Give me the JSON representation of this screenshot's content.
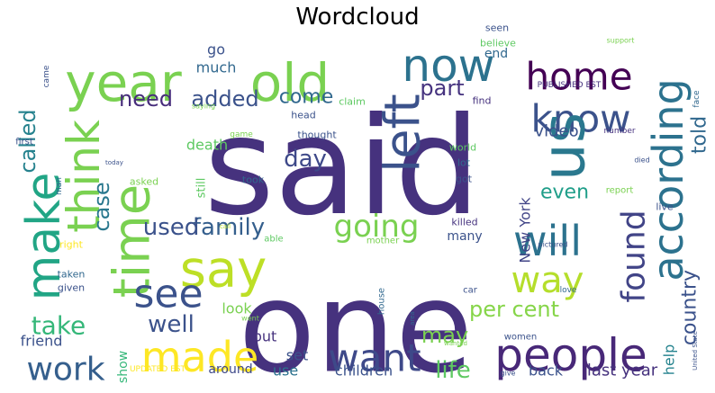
{
  "chart_data": {
    "type": "wordcloud",
    "title": "Wordcloud",
    "palette": [
      "#440154",
      "#472f7d",
      "#3b518b",
      "#2c718e",
      "#21908d",
      "#27ad81",
      "#5cc863",
      "#aadc32",
      "#fde725"
    ],
    "words": [
      {
        "text": "said",
        "color": "#46327e"
      },
      {
        "text": "one",
        "color": "#46327e"
      },
      {
        "text": "year",
        "color": "#7ad151"
      },
      {
        "text": "old",
        "color": "#7ad151"
      },
      {
        "text": "now",
        "color": "#2c728e"
      },
      {
        "text": "home",
        "color": "#440154"
      },
      {
        "text": "know",
        "color": "#3b528b"
      },
      {
        "text": "according",
        "color": "#2c728e"
      },
      {
        "text": "us",
        "color": "#2a788e"
      },
      {
        "text": "left",
        "color": "#3b528b"
      },
      {
        "text": "will",
        "color": "#2c728e"
      },
      {
        "text": "time",
        "color": "#7ad151"
      },
      {
        "text": "think",
        "color": "#7ad151"
      },
      {
        "text": "make",
        "color": "#21a585"
      },
      {
        "text": "say",
        "color": "#bddf26"
      },
      {
        "text": "see",
        "color": "#3b528b"
      },
      {
        "text": "made",
        "color": "#fde725"
      },
      {
        "text": "people",
        "color": "#482878"
      },
      {
        "text": "want",
        "color": "#3e4989"
      },
      {
        "text": "going",
        "color": "#7ad151"
      },
      {
        "text": "found",
        "color": "#414487"
      },
      {
        "text": "way",
        "color": "#b5de2b"
      },
      {
        "text": "family",
        "color": "#355f8d"
      },
      {
        "text": "used",
        "color": "#3b528b"
      },
      {
        "text": "work",
        "color": "#355f8d"
      },
      {
        "text": "take",
        "color": "#35b779"
      },
      {
        "text": "well",
        "color": "#3b528b"
      },
      {
        "text": "per cent",
        "color": "#86d549"
      },
      {
        "text": "may",
        "color": "#7ad151"
      },
      {
        "text": "life",
        "color": "#5ec962"
      },
      {
        "text": "country",
        "color": "#3b528b"
      },
      {
        "text": "told",
        "color": "#31688e"
      },
      {
        "text": "even",
        "color": "#1f9e89"
      },
      {
        "text": "case",
        "color": "#2a788e"
      },
      {
        "text": "called",
        "color": "#26828e"
      },
      {
        "text": "need",
        "color": "#472d7b"
      },
      {
        "text": "added",
        "color": "#3b528b"
      },
      {
        "text": "come",
        "color": "#31688e"
      },
      {
        "text": "part",
        "color": "#46337f"
      },
      {
        "text": "day",
        "color": "#3e4989"
      },
      {
        "text": "video",
        "color": "#3b528b"
      },
      {
        "text": "death",
        "color": "#5ec962"
      },
      {
        "text": "go",
        "color": "#3b528b"
      },
      {
        "text": "much",
        "color": "#31688e"
      },
      {
        "text": "New York",
        "color": "#414487"
      },
      {
        "text": "children",
        "color": "#3b528b"
      },
      {
        "text": "back",
        "color": "#3b528b"
      },
      {
        "text": "last year",
        "color": "#46327e"
      },
      {
        "text": "set",
        "color": "#3b528b"
      },
      {
        "text": "put",
        "color": "#46327e"
      },
      {
        "text": "use",
        "color": "#2c728e"
      },
      {
        "text": "look",
        "color": "#7ad151"
      },
      {
        "text": "friend",
        "color": "#3b528b"
      },
      {
        "text": "help",
        "color": "#25838e"
      },
      {
        "text": "many",
        "color": "#3b528b"
      },
      {
        "text": "killed",
        "color": "#46337f"
      },
      {
        "text": "show",
        "color": "#35b779"
      },
      {
        "text": "around",
        "color": "#3e4989"
      },
      {
        "text": "UPDATED EST",
        "color": "#fde725"
      },
      {
        "text": "PUBLISHED EST",
        "color": "#46327e"
      },
      {
        "text": "end",
        "color": "#31688e"
      },
      {
        "text": "believe",
        "color": "#5ec962"
      },
      {
        "text": "seen",
        "color": "#3b528b"
      },
      {
        "text": "claim",
        "color": "#5ec962"
      },
      {
        "text": "head",
        "color": "#3b528b"
      },
      {
        "text": "thought",
        "color": "#3b528b"
      },
      {
        "text": "still",
        "color": "#5ec962"
      },
      {
        "text": "took",
        "color": "#31688e"
      },
      {
        "text": "asked",
        "color": "#7ad151"
      },
      {
        "text": "game",
        "color": "#7ad151"
      },
      {
        "text": "world",
        "color": "#5ec962"
      },
      {
        "text": "got",
        "color": "#3b528b"
      },
      {
        "text": "lot",
        "color": "#31688e"
      },
      {
        "text": "find",
        "color": "#46327e"
      },
      {
        "text": "number",
        "color": "#46327e"
      },
      {
        "text": "report",
        "color": "#7ad151"
      },
      {
        "text": "died",
        "color": "#3b528b"
      },
      {
        "text": "live",
        "color": "#3b528b"
      },
      {
        "text": "face",
        "color": "#31688e"
      },
      {
        "text": "support",
        "color": "#7ad151"
      },
      {
        "text": "came",
        "color": "#3b528b"
      },
      {
        "text": "first",
        "color": "#3b528b"
      },
      {
        "text": "saying",
        "color": "#7ad151"
      },
      {
        "text": "man",
        "color": "#31688e"
      },
      {
        "text": "today",
        "color": "#3b528b"
      },
      {
        "text": "right",
        "color": "#fde725"
      },
      {
        "text": "call",
        "color": "#b5de2b"
      },
      {
        "text": "able",
        "color": "#5ec962"
      },
      {
        "text": "mother",
        "color": "#7ad151"
      },
      {
        "text": "taken",
        "color": "#31688e"
      },
      {
        "text": "given",
        "color": "#3b528b"
      },
      {
        "text": "house",
        "color": "#31688e"
      },
      {
        "text": "went",
        "color": "#7ad151"
      },
      {
        "text": "area",
        "color": "#31688e"
      },
      {
        "text": "car",
        "color": "#3b528b"
      },
      {
        "text": "women",
        "color": "#3b528b"
      },
      {
        "text": "wanted",
        "color": "#7ad151"
      },
      {
        "text": "pictured",
        "color": "#3b528b"
      },
      {
        "text": "love",
        "color": "#31688e"
      },
      {
        "text": "give",
        "color": "#3b528b"
      },
      {
        "text": "United State",
        "color": "#3b528b"
      }
    ]
  }
}
